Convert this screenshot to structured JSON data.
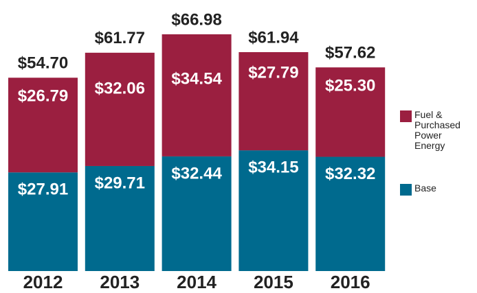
{
  "chart_data": {
    "type": "stacked_bar",
    "categories": [
      "2012",
      "2013",
      "2014",
      "2015",
      "2016"
    ],
    "series": [
      {
        "name": "Base",
        "color": "#006a8e",
        "values": [
          27.91,
          29.71,
          32.44,
          34.15,
          32.32
        ],
        "value_labels": [
          "$27.91",
          "$29.71",
          "$32.44",
          "$34.15",
          "$32.32"
        ]
      },
      {
        "name": "Fuel & Purchased Power Energy",
        "color": "#9b1f40",
        "values": [
          26.79,
          32.06,
          34.54,
          27.79,
          25.3
        ],
        "value_labels": [
          "$26.79",
          "$32.06",
          "$34.54",
          "$27.79",
          "$25.30"
        ]
      }
    ],
    "total_labels": [
      "$54.70",
      "$61.77",
      "$66.98",
      "$61.94",
      "$57.62"
    ]
  }
}
